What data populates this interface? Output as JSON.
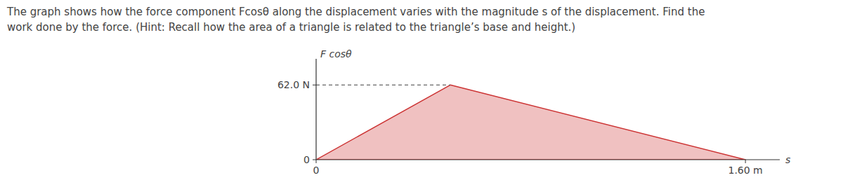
{
  "chart_data": {
    "type": "area",
    "title": "The graph shows how the force component Fcosθ along the displacement varies with the magnitude s of the displacement. Find the",
    "subtitle": "work done by the force. (Hint: Recall how the area of a triangle is related to the triangle’s base and height.)",
    "x": [
      0,
      0.5,
      1.6
    ],
    "values": [
      0,
      62.0,
      0
    ],
    "xlabel": "s",
    "ylabel": "F cosθ",
    "xlim": [
      0,
      1.728
    ],
    "ylim": [
      0,
      83.7
    ],
    "xticks": [
      0,
      {
        "value": 1.6,
        "label": "1.60 m"
      }
    ],
    "yticks": [
      0,
      {
        "value": 62.0,
        "label": "62.0 N"
      }
    ],
    "color": "#cc3333",
    "grid": false
  }
}
